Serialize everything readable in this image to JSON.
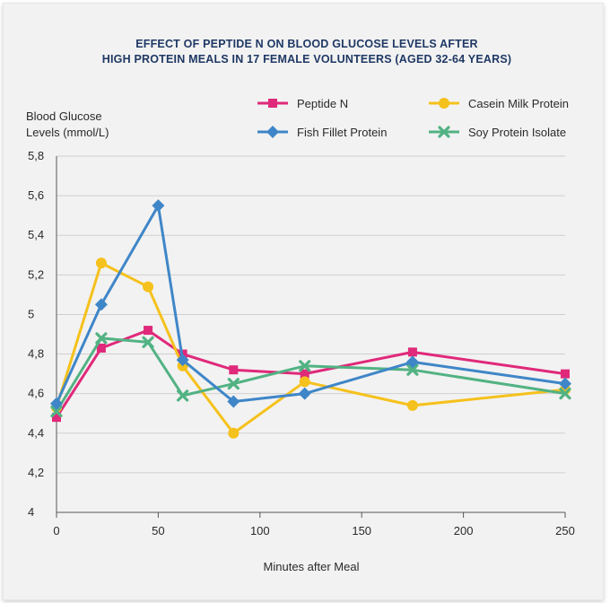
{
  "chart_data": {
    "type": "line",
    "title_lines": [
      "EFFECT OF PEPTIDE N ON BLOOD GLUCOSE LEVELS AFTER",
      "HIGH PROTEIN MEALS IN 17 FEMALE VOLUNTEERS (AGED 32-64 YEARS)"
    ],
    "ylabel_lines": [
      "Blood Glucose",
      "Levels (mmol/L)"
    ],
    "xlabel": "Minutes after Meal",
    "xlim": [
      0,
      250
    ],
    "ylim": [
      4,
      5.8
    ],
    "x_ticks": [
      0,
      50,
      100,
      150,
      200,
      250
    ],
    "x_tick_labels": [
      "0",
      "50",
      "100",
      "150",
      "200",
      "250"
    ],
    "y_ticks": [
      4,
      4.2,
      4.4,
      4.6,
      4.8,
      5,
      5.2,
      5.4,
      5.6,
      5.8
    ],
    "y_tick_labels": [
      "4",
      "4,2",
      "4,4",
      "4,6",
      "4,8",
      "5",
      "5,2",
      "5,4",
      "5,6",
      "5,8"
    ],
    "grid": "horizontal",
    "legend_position": "top-right",
    "series": [
      {
        "name": "Peptide N",
        "color": "#e0297a",
        "marker": "square",
        "x": [
          0,
          22,
          45,
          62,
          87,
          122,
          175,
          250
        ],
        "y": [
          4.48,
          4.83,
          4.92,
          4.8,
          4.72,
          4.7,
          4.81,
          4.7
        ]
      },
      {
        "name": "Casein Milk Protein",
        "color": "#f5c11c",
        "marker": "circle",
        "x": [
          0,
          22,
          45,
          62,
          87,
          122,
          175,
          250
        ],
        "y": [
          4.53,
          5.26,
          5.14,
          4.74,
          4.4,
          4.66,
          4.54,
          4.62
        ]
      },
      {
        "name": "Fish Fillet Protein",
        "color": "#3f86c8",
        "marker": "diamond",
        "x": [
          0,
          22,
          50,
          62,
          87,
          122,
          175,
          250
        ],
        "y": [
          4.55,
          5.05,
          5.55,
          4.77,
          4.56,
          4.6,
          4.76,
          4.65
        ]
      },
      {
        "name": "Soy Protein Isolate",
        "color": "#52b283",
        "marker": "x",
        "x": [
          0,
          22,
          45,
          62,
          87,
          122,
          175,
          250
        ],
        "y": [
          4.51,
          4.88,
          4.86,
          4.59,
          4.65,
          4.74,
          4.72,
          4.6
        ]
      }
    ]
  }
}
